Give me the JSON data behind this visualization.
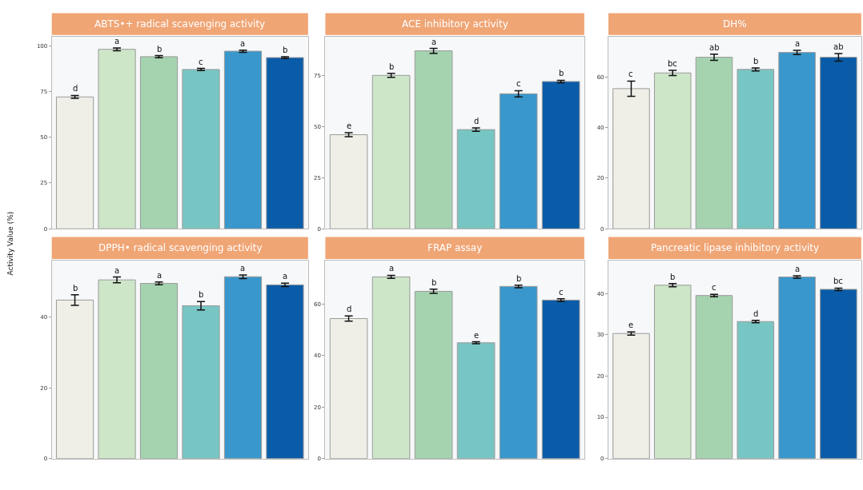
{
  "chart_data": [
    {
      "type": "bar",
      "title": "ABTS•+ radical scavenging activity",
      "ylabel": "Activity Value (%)",
      "categories": [
        null,
        null,
        null,
        null,
        null,
        null
      ],
      "values": [
        72,
        98,
        94,
        87,
        97,
        93.5
      ],
      "errors": [
        0.8,
        0.8,
        0.6,
        0.6,
        0.6,
        0.5
      ],
      "value_labels": [
        "d",
        "a",
        "b",
        "c",
        "a",
        "b"
      ],
      "colors": [
        "#efefe8",
        "#cde6c8",
        "#a5d3b0",
        "#78c6c3",
        "#3997cb",
        "#0b5ca8"
      ],
      "ylim": [
        0,
        105
      ],
      "yticks": [
        0,
        25,
        50,
        75,
        100
      ],
      "grid": false,
      "tick_labels": "y"
    },
    {
      "type": "bar",
      "title": "ACE inhibitory activity",
      "categories": [
        null,
        null,
        null,
        null,
        null,
        null
      ],
      "values": [
        46,
        75,
        87,
        48.5,
        66,
        72
      ],
      "errors": [
        1.0,
        1.0,
        1.2,
        0.8,
        1.5,
        0.6
      ],
      "value_labels": [
        "e",
        "b",
        "a",
        "d",
        "c",
        "b"
      ],
      "colors": [
        "#efefe8",
        "#cde6c8",
        "#a5d3b0",
        "#78c6c3",
        "#3997cb",
        "#0b5ca8"
      ],
      "ylim": [
        0,
        94
      ],
      "yticks": [
        0,
        25,
        50,
        75
      ],
      "grid": false,
      "tick_labels": "y"
    },
    {
      "type": "bar",
      "title": "DH%",
      "categories": [
        null,
        null,
        null,
        null,
        null,
        null
      ],
      "values": [
        55.4,
        61.6,
        67.8,
        63,
        69.7,
        67.8
      ],
      "errors": [
        3,
        1,
        1.2,
        0.6,
        0.8,
        1.5
      ],
      "value_labels": [
        "c",
        "bc",
        "ab",
        "b",
        "a",
        "ab"
      ],
      "colors": [
        "#efefe8",
        "#cde6c8",
        "#a5d3b0",
        "#78c6c3",
        "#3997cb",
        "#0b5ca8"
      ],
      "ylim": [
        0,
        76
      ],
      "yticks": [
        0,
        20,
        40,
        60
      ],
      "grid": false,
      "tick_labels": "y"
    },
    {
      "type": "bar",
      "title": "DPPH• radical scavenging activity",
      "categories": [
        null,
        null,
        null,
        null,
        null,
        null
      ],
      "values": [
        44.8,
        50.5,
        49.5,
        43.2,
        51.4,
        49.1
      ],
      "errors": [
        1.5,
        0.8,
        0.4,
        1.2,
        0.5,
        0.5
      ],
      "value_labels": [
        "b",
        "a",
        "a",
        "b",
        "a",
        "a"
      ],
      "colors": [
        "#efefe8",
        "#cde6c8",
        "#a5d3b0",
        "#78c6c3",
        "#3997cb",
        "#0b5ca8"
      ],
      "ylim": [
        0,
        56
      ],
      "yticks": [
        0,
        20,
        40
      ],
      "grid": false,
      "tick_labels": "y"
    },
    {
      "type": "bar",
      "title": "FRAP assay",
      "categories": [
        null,
        null,
        null,
        null,
        null,
        null
      ],
      "values": [
        54.4,
        70.6,
        65,
        45,
        66.9,
        61.6
      ],
      "errors": [
        1.0,
        0.6,
        0.8,
        0.4,
        0.5,
        0.5
      ],
      "value_labels": [
        "d",
        "a",
        "b",
        "e",
        "b",
        "c"
      ],
      "colors": [
        "#efefe8",
        "#cde6c8",
        "#a5d3b0",
        "#78c6c3",
        "#3997cb",
        "#0b5ca8"
      ],
      "ylim": [
        0,
        77
      ],
      "yticks": [
        0,
        20,
        40,
        60
      ],
      "grid": false,
      "tick_labels": "y"
    },
    {
      "type": "bar",
      "title": "Pancreatic lipase inhibitory activity",
      "categories": [
        null,
        null,
        null,
        null,
        null,
        null
      ],
      "values": [
        30.3,
        42,
        39.5,
        33.2,
        44,
        41
      ],
      "errors": [
        0.4,
        0.4,
        0.3,
        0.3,
        0.3,
        0.3
      ],
      "value_labels": [
        "e",
        "b",
        "c",
        "d",
        "a",
        "bc"
      ],
      "colors": [
        "#efefe8",
        "#cde6c8",
        "#a5d3b0",
        "#78c6c3",
        "#3997cb",
        "#0b5ca8"
      ],
      "ylim": [
        0,
        48
      ],
      "yticks": [
        0,
        10,
        20,
        30,
        40
      ],
      "grid": false,
      "tick_labels": "y"
    }
  ]
}
